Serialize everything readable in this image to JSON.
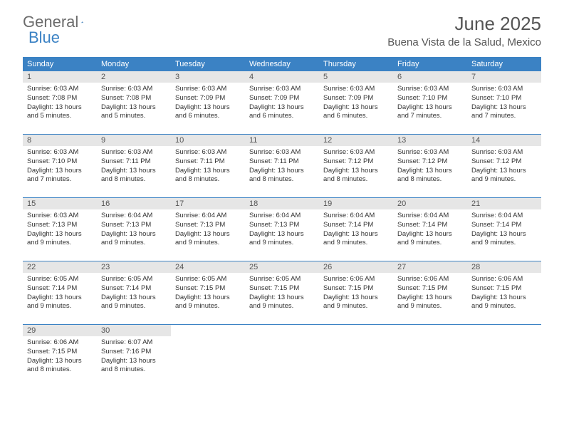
{
  "logo": {
    "text1": "General",
    "text2": "Blue"
  },
  "header": {
    "month_title": "June 2025",
    "location": "Buena Vista de la Salud, Mexico"
  },
  "colors": {
    "brand_blue": "#3b82c4",
    "header_text": "#ffffff",
    "datebar_bg": "#e6e6e6",
    "text": "#333333",
    "logo_gray": "#6b6b6b"
  },
  "day_names": [
    "Sunday",
    "Monday",
    "Tuesday",
    "Wednesday",
    "Thursday",
    "Friday",
    "Saturday"
  ],
  "weeks": [
    [
      {
        "date": "1",
        "sunrise": "Sunrise: 6:03 AM",
        "sunset": "Sunset: 7:08 PM",
        "day1": "Daylight: 13 hours",
        "day2": "and 5 minutes."
      },
      {
        "date": "2",
        "sunrise": "Sunrise: 6:03 AM",
        "sunset": "Sunset: 7:08 PM",
        "day1": "Daylight: 13 hours",
        "day2": "and 5 minutes."
      },
      {
        "date": "3",
        "sunrise": "Sunrise: 6:03 AM",
        "sunset": "Sunset: 7:09 PM",
        "day1": "Daylight: 13 hours",
        "day2": "and 6 minutes."
      },
      {
        "date": "4",
        "sunrise": "Sunrise: 6:03 AM",
        "sunset": "Sunset: 7:09 PM",
        "day1": "Daylight: 13 hours",
        "day2": "and 6 minutes."
      },
      {
        "date": "5",
        "sunrise": "Sunrise: 6:03 AM",
        "sunset": "Sunset: 7:09 PM",
        "day1": "Daylight: 13 hours",
        "day2": "and 6 minutes."
      },
      {
        "date": "6",
        "sunrise": "Sunrise: 6:03 AM",
        "sunset": "Sunset: 7:10 PM",
        "day1": "Daylight: 13 hours",
        "day2": "and 7 minutes."
      },
      {
        "date": "7",
        "sunrise": "Sunrise: 6:03 AM",
        "sunset": "Sunset: 7:10 PM",
        "day1": "Daylight: 13 hours",
        "day2": "and 7 minutes."
      }
    ],
    [
      {
        "date": "8",
        "sunrise": "Sunrise: 6:03 AM",
        "sunset": "Sunset: 7:10 PM",
        "day1": "Daylight: 13 hours",
        "day2": "and 7 minutes."
      },
      {
        "date": "9",
        "sunrise": "Sunrise: 6:03 AM",
        "sunset": "Sunset: 7:11 PM",
        "day1": "Daylight: 13 hours",
        "day2": "and 8 minutes."
      },
      {
        "date": "10",
        "sunrise": "Sunrise: 6:03 AM",
        "sunset": "Sunset: 7:11 PM",
        "day1": "Daylight: 13 hours",
        "day2": "and 8 minutes."
      },
      {
        "date": "11",
        "sunrise": "Sunrise: 6:03 AM",
        "sunset": "Sunset: 7:11 PM",
        "day1": "Daylight: 13 hours",
        "day2": "and 8 minutes."
      },
      {
        "date": "12",
        "sunrise": "Sunrise: 6:03 AM",
        "sunset": "Sunset: 7:12 PM",
        "day1": "Daylight: 13 hours",
        "day2": "and 8 minutes."
      },
      {
        "date": "13",
        "sunrise": "Sunrise: 6:03 AM",
        "sunset": "Sunset: 7:12 PM",
        "day1": "Daylight: 13 hours",
        "day2": "and 8 minutes."
      },
      {
        "date": "14",
        "sunrise": "Sunrise: 6:03 AM",
        "sunset": "Sunset: 7:12 PM",
        "day1": "Daylight: 13 hours",
        "day2": "and 9 minutes."
      }
    ],
    [
      {
        "date": "15",
        "sunrise": "Sunrise: 6:03 AM",
        "sunset": "Sunset: 7:13 PM",
        "day1": "Daylight: 13 hours",
        "day2": "and 9 minutes."
      },
      {
        "date": "16",
        "sunrise": "Sunrise: 6:04 AM",
        "sunset": "Sunset: 7:13 PM",
        "day1": "Daylight: 13 hours",
        "day2": "and 9 minutes."
      },
      {
        "date": "17",
        "sunrise": "Sunrise: 6:04 AM",
        "sunset": "Sunset: 7:13 PM",
        "day1": "Daylight: 13 hours",
        "day2": "and 9 minutes."
      },
      {
        "date": "18",
        "sunrise": "Sunrise: 6:04 AM",
        "sunset": "Sunset: 7:13 PM",
        "day1": "Daylight: 13 hours",
        "day2": "and 9 minutes."
      },
      {
        "date": "19",
        "sunrise": "Sunrise: 6:04 AM",
        "sunset": "Sunset: 7:14 PM",
        "day1": "Daylight: 13 hours",
        "day2": "and 9 minutes."
      },
      {
        "date": "20",
        "sunrise": "Sunrise: 6:04 AM",
        "sunset": "Sunset: 7:14 PM",
        "day1": "Daylight: 13 hours",
        "day2": "and 9 minutes."
      },
      {
        "date": "21",
        "sunrise": "Sunrise: 6:04 AM",
        "sunset": "Sunset: 7:14 PM",
        "day1": "Daylight: 13 hours",
        "day2": "and 9 minutes."
      }
    ],
    [
      {
        "date": "22",
        "sunrise": "Sunrise: 6:05 AM",
        "sunset": "Sunset: 7:14 PM",
        "day1": "Daylight: 13 hours",
        "day2": "and 9 minutes."
      },
      {
        "date": "23",
        "sunrise": "Sunrise: 6:05 AM",
        "sunset": "Sunset: 7:14 PM",
        "day1": "Daylight: 13 hours",
        "day2": "and 9 minutes."
      },
      {
        "date": "24",
        "sunrise": "Sunrise: 6:05 AM",
        "sunset": "Sunset: 7:15 PM",
        "day1": "Daylight: 13 hours",
        "day2": "and 9 minutes."
      },
      {
        "date": "25",
        "sunrise": "Sunrise: 6:05 AM",
        "sunset": "Sunset: 7:15 PM",
        "day1": "Daylight: 13 hours",
        "day2": "and 9 minutes."
      },
      {
        "date": "26",
        "sunrise": "Sunrise: 6:06 AM",
        "sunset": "Sunset: 7:15 PM",
        "day1": "Daylight: 13 hours",
        "day2": "and 9 minutes."
      },
      {
        "date": "27",
        "sunrise": "Sunrise: 6:06 AM",
        "sunset": "Sunset: 7:15 PM",
        "day1": "Daylight: 13 hours",
        "day2": "and 9 minutes."
      },
      {
        "date": "28",
        "sunrise": "Sunrise: 6:06 AM",
        "sunset": "Sunset: 7:15 PM",
        "day1": "Daylight: 13 hours",
        "day2": "and 9 minutes."
      }
    ],
    [
      {
        "date": "29",
        "sunrise": "Sunrise: 6:06 AM",
        "sunset": "Sunset: 7:15 PM",
        "day1": "Daylight: 13 hours",
        "day2": "and 8 minutes."
      },
      {
        "date": "30",
        "sunrise": "Sunrise: 6:07 AM",
        "sunset": "Sunset: 7:16 PM",
        "day1": "Daylight: 13 hours",
        "day2": "and 8 minutes."
      },
      {
        "empty": true
      },
      {
        "empty": true
      },
      {
        "empty": true
      },
      {
        "empty": true
      },
      {
        "empty": true
      }
    ]
  ]
}
